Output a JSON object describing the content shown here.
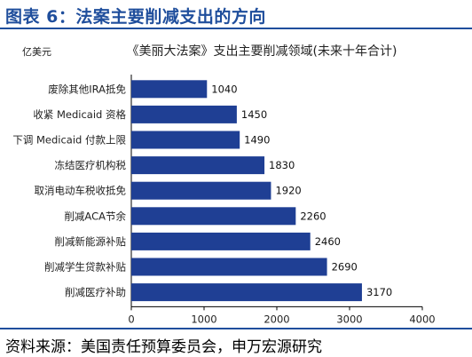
{
  "figure": {
    "title": "图表 6：法案主要削减支出的方向",
    "source": "资料来源：美国责任预算委员会，申万宏源研究"
  },
  "colors": {
    "heading": "#1f4e9c",
    "bar": "#1f3f94",
    "axis": "#000000"
  },
  "chart_data": {
    "type": "bar",
    "orientation": "horizontal",
    "title": "《美丽大法案》支出主要削减领域(未来十年合计)",
    "unit": "亿美元",
    "categories": [
      "废除其他IRA抵免",
      "收紧 Medicaid 资格",
      "下调 Medicaid 付款上限",
      "冻结医疗机构税",
      "取消电动车税收抵免",
      "削减ACA节余",
      "削减新能源补贴",
      "削减学生贷款补贴",
      "削减医疗补助"
    ],
    "values": [
      1040,
      1450,
      1490,
      1830,
      1920,
      2260,
      2460,
      2690,
      3170
    ],
    "xlim": [
      0,
      4000
    ],
    "xticks": [
      0,
      1000,
      2000,
      3000,
      4000
    ],
    "grid": false,
    "legend": "none"
  }
}
